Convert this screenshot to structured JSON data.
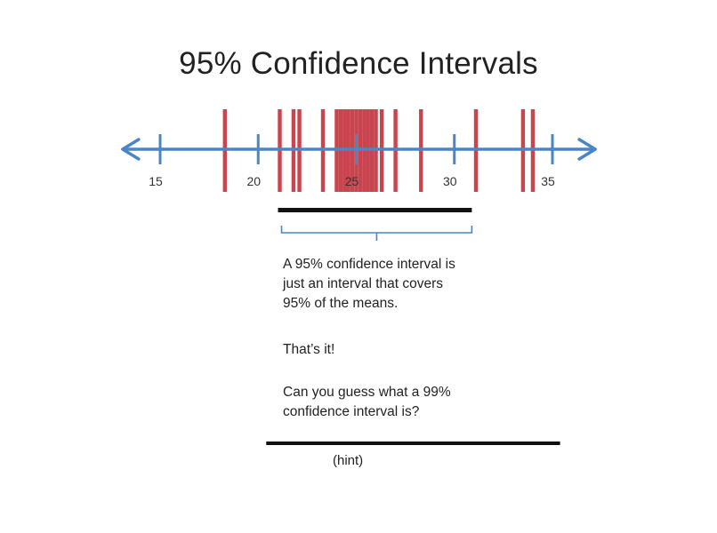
{
  "slide": {
    "title": "95% Confidence Intervals",
    "description_lines": [
      "A 95% confidence interval is",
      "just an interval that covers",
      "95% of the means."
    ],
    "emphasis": "That’s it!",
    "question_lines": [
      "Can you guess what a 99%",
      "confidence interval is?"
    ],
    "hint_label": "(hint)"
  },
  "colors": {
    "axis": "#4a86c5",
    "means": "#c8454f",
    "interval_bar": "#111111",
    "bracket": "#4a86c5"
  },
  "number_line": {
    "axis_min": 12,
    "axis_max": 38,
    "ticks": [
      {
        "value": 15,
        "label": "15"
      },
      {
        "value": 20,
        "label": "20"
      },
      {
        "value": 25,
        "label": "25"
      },
      {
        "value": 30,
        "label": "30"
      },
      {
        "value": 35,
        "label": "35"
      }
    ],
    "sample_means": [
      18.3,
      21.1,
      21.8,
      22.1,
      23.3,
      24.0,
      24.2,
      24.4,
      24.6,
      24.8,
      25.0,
      25.2,
      25.4,
      25.6,
      25.8,
      26.0,
      26.3,
      27.0,
      28.3,
      31.1,
      33.5,
      34.0
    ],
    "interval_95": [
      21.1,
      30.8
    ],
    "interval_99": [
      20.5,
      35.3
    ]
  }
}
